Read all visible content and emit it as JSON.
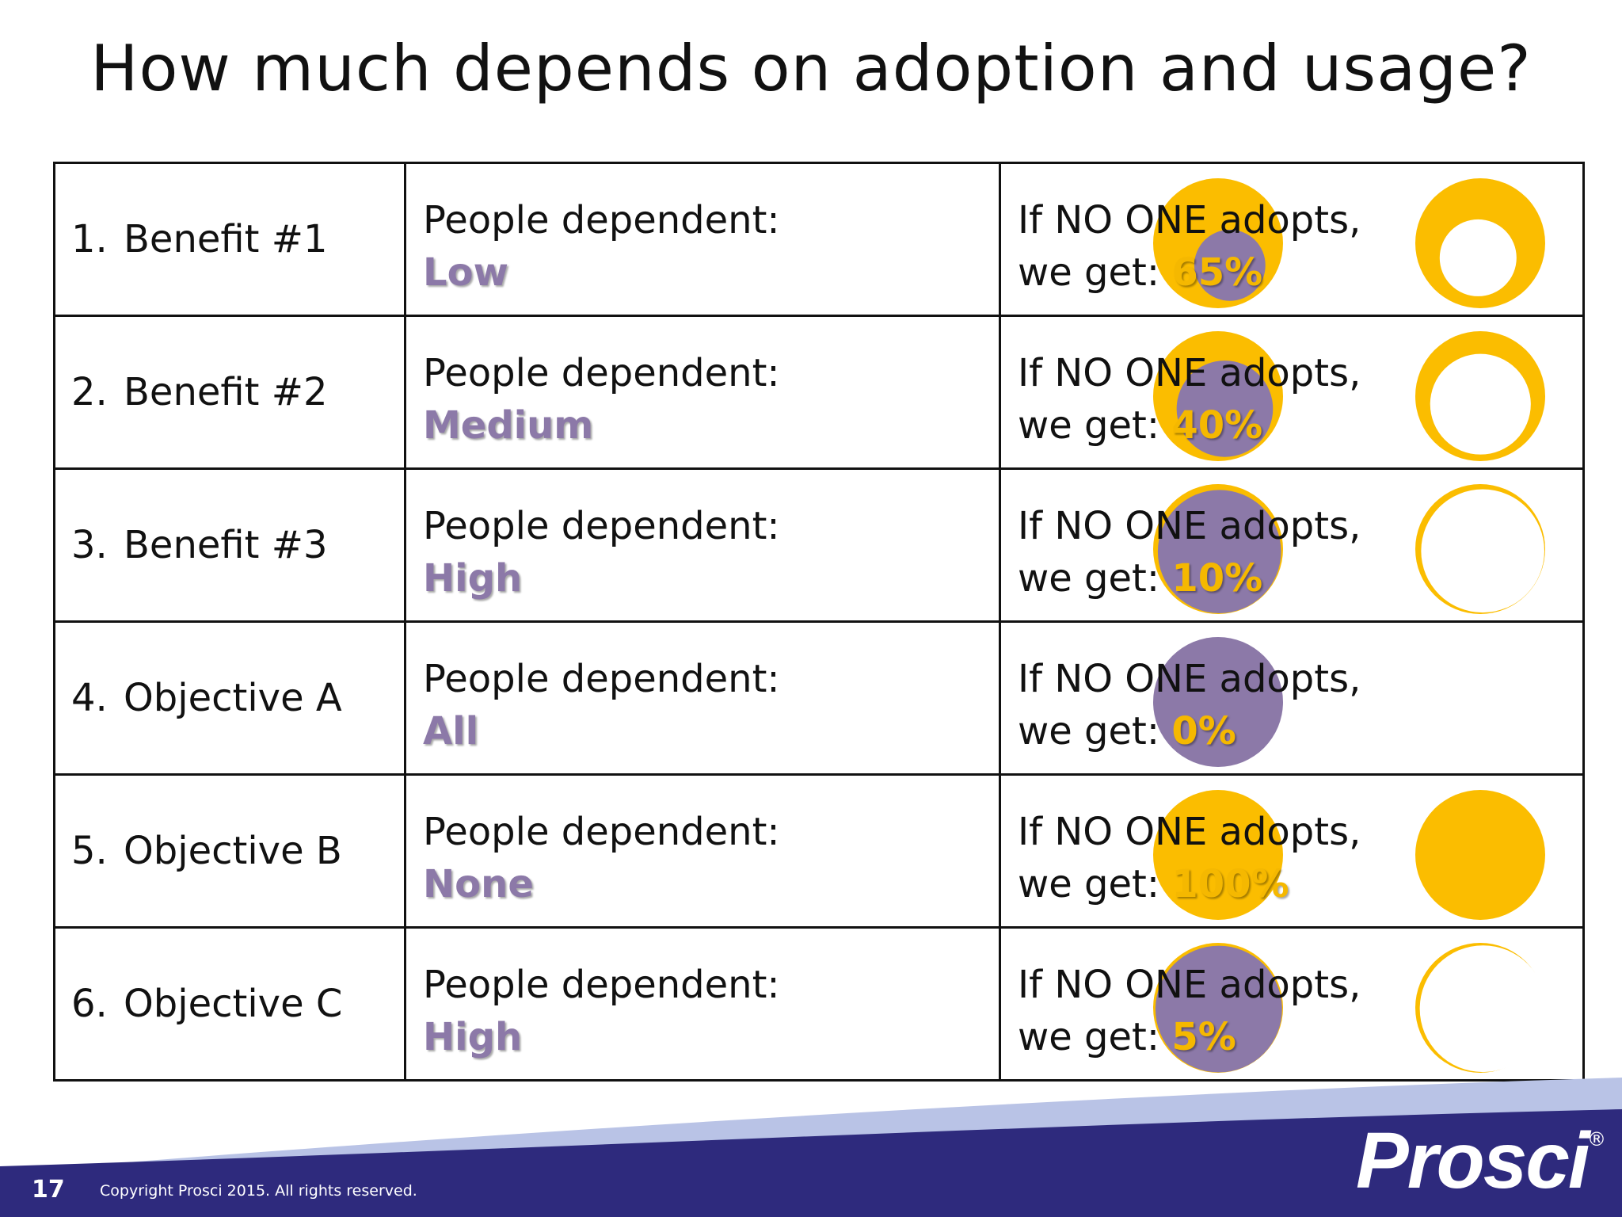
{
  "title": "How much depends on adoption and usage?",
  "colors": {
    "gold": "#fbbd00",
    "purple": "#8c79a8",
    "navy": "#2e2a7d"
  },
  "rows": [
    {
      "num": "1.",
      "name": "Benefit #1",
      "dep_label": "People dependent:",
      "level": "Low",
      "result_line1": "If NO ONE adopts,",
      "result_line2": "we get:",
      "pct": "65%",
      "dependency": 0.3,
      "yield": 0.65
    },
    {
      "num": "2.",
      "name": "Benefit #2",
      "dep_label": "People dependent:",
      "level": "Medium",
      "result_line1": "If NO ONE adopts,",
      "result_line2": "we get:",
      "pct": "40%",
      "dependency": 0.55,
      "yield": 0.4
    },
    {
      "num": "3.",
      "name": "Benefit #3",
      "dep_label": "People dependent:",
      "level": "High",
      "result_line1": "If NO ONE adopts,",
      "result_line2": "we get:",
      "pct": "10%",
      "dependency": 0.9,
      "yield": 0.1
    },
    {
      "num": "4.",
      "name": "Objective A",
      "dep_label": "People dependent:",
      "level": "All",
      "result_line1": "If NO ONE adopts,",
      "result_line2": "we get:",
      "pct": "0%",
      "dependency": 1.0,
      "yield": 0.0
    },
    {
      "num": "5.",
      "name": "Objective B",
      "dep_label": "People dependent:",
      "level": "None",
      "result_line1": "If NO ONE adopts,",
      "result_line2": "we get:",
      "pct": "100%",
      "dependency": 0.0,
      "yield": 1.0
    },
    {
      "num": "6.",
      "name": "Objective C",
      "dep_label": "People dependent:",
      "level": "High",
      "result_line1": "If NO ONE adopts,",
      "result_line2": "we get:",
      "pct": "5%",
      "dependency": 0.95,
      "yield": 0.05
    }
  ],
  "footer": {
    "page_number": "17",
    "copyright": "Copyright Prosci 2015. All rights reserved.",
    "logo": "Prosci",
    "registered": "®"
  }
}
